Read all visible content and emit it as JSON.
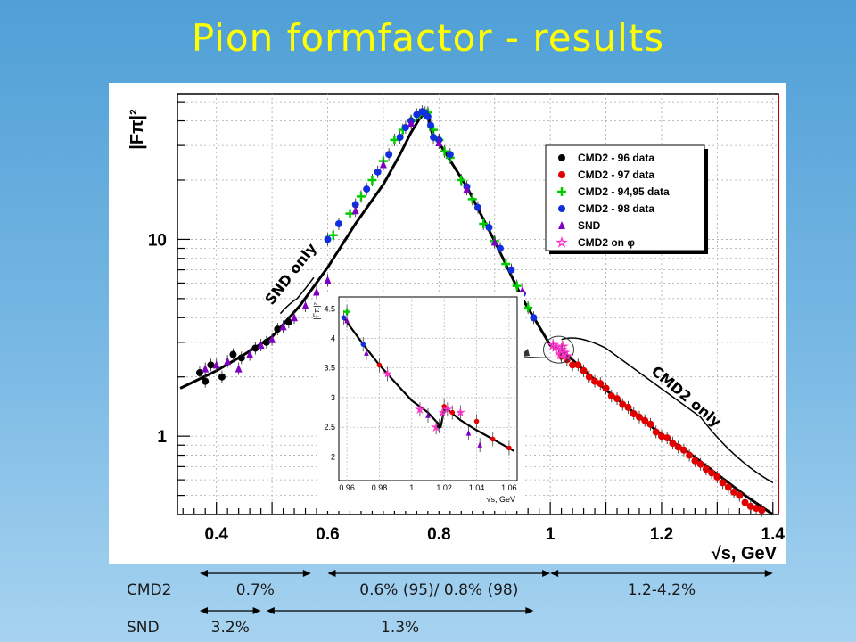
{
  "slide": {
    "title": "Pion formfactor - results"
  },
  "chart_data": {
    "type": "scatter",
    "y_scale": "log",
    "xlim": [
      0.33,
      1.41
    ],
    "ylim": [
      0.4,
      55
    ],
    "ylabel": "|Fπ|²",
    "xlabel": "√s, GeV",
    "x_ticks": [
      "0.4",
      "0.6",
      "0.8",
      "1",
      "1.2",
      "1.4"
    ],
    "x_tick_values": [
      0.4,
      0.6,
      0.8,
      1.0,
      1.2,
      1.4
    ],
    "y_ticks": [
      "1",
      "10"
    ],
    "y_tick_values": [
      1,
      10
    ],
    "grid": true,
    "legend_position": "top-right",
    "series": [
      {
        "name": "CMD2 - 96 data",
        "marker": "circle",
        "color": "#000000",
        "x": [
          0.37,
          0.38,
          0.39,
          0.41,
          0.43,
          0.445,
          0.47,
          0.49,
          0.51,
          0.53
        ],
        "y": [
          2.1,
          1.9,
          2.3,
          2.0,
          2.6,
          2.5,
          2.8,
          3.0,
          3.5,
          3.8
        ]
      },
      {
        "name": "CMD2 - 97 data",
        "marker": "circle",
        "color": "#e00000",
        "x": [
          1.02,
          1.03,
          1.04,
          1.05,
          1.06,
          1.07,
          1.08,
          1.09,
          1.1,
          1.11,
          1.12,
          1.13,
          1.14,
          1.15,
          1.16,
          1.17,
          1.18,
          1.19,
          1.2,
          1.21,
          1.22,
          1.23,
          1.24,
          1.25,
          1.26,
          1.27,
          1.28,
          1.29,
          1.3,
          1.31,
          1.32,
          1.33,
          1.34,
          1.35,
          1.36,
          1.37,
          1.38
        ],
        "y": [
          2.55,
          2.45,
          2.3,
          2.3,
          2.15,
          2.0,
          1.9,
          1.85,
          1.75,
          1.6,
          1.55,
          1.45,
          1.4,
          1.3,
          1.25,
          1.2,
          1.15,
          1.05,
          1.0,
          0.98,
          0.92,
          0.88,
          0.85,
          0.8,
          0.75,
          0.72,
          0.68,
          0.65,
          0.62,
          0.58,
          0.55,
          0.52,
          0.5,
          0.46,
          0.44,
          0.43,
          0.42
        ]
      },
      {
        "name": "CMD2 - 94,95 data",
        "marker": "cross",
        "color": "#00cc00",
        "x": [
          0.61,
          0.64,
          0.66,
          0.68,
          0.7,
          0.72,
          0.735,
          0.75,
          0.765,
          0.78,
          0.79,
          0.8,
          0.81,
          0.82,
          0.84,
          0.86,
          0.88,
          0.9,
          0.92,
          0.94,
          0.96
        ],
        "y": [
          10.5,
          13.5,
          16.5,
          20.0,
          25.0,
          32.0,
          36.0,
          40.0,
          43.0,
          44.0,
          36.0,
          32.0,
          28.0,
          26.0,
          20.0,
          16.0,
          12.0,
          9.8,
          7.5,
          5.8,
          4.5
        ]
      },
      {
        "name": "CMD2 - 98 data",
        "marker": "circle",
        "color": "#1030e0",
        "x": [
          0.6,
          0.62,
          0.65,
          0.67,
          0.69,
          0.71,
          0.73,
          0.74,
          0.75,
          0.76,
          0.77,
          0.775,
          0.78,
          0.785,
          0.79,
          0.8,
          0.82,
          0.85,
          0.87,
          0.89,
          0.91,
          0.93,
          0.95,
          0.97
        ],
        "y": [
          10.0,
          12.0,
          15.0,
          18.0,
          22.0,
          27.0,
          33.0,
          37.0,
          40.0,
          43.0,
          44.5,
          44.0,
          42.0,
          38.0,
          33.0,
          32.0,
          27.0,
          18.5,
          14.5,
          11.5,
          9.0,
          7.0,
          5.3,
          4.0
        ]
      },
      {
        "name": "SND",
        "marker": "triangle",
        "color": "#8000c0",
        "x": [
          0.38,
          0.4,
          0.42,
          0.44,
          0.46,
          0.48,
          0.5,
          0.52,
          0.54,
          0.56,
          0.58,
          0.6,
          0.65,
          0.7,
          0.75,
          0.8,
          0.85,
          0.9,
          0.95
        ],
        "y": [
          2.2,
          2.3,
          2.4,
          2.2,
          2.6,
          2.9,
          3.1,
          3.6,
          4.0,
          4.6,
          5.4,
          6.2,
          14.0,
          24.0,
          39.0,
          31.0,
          18.0,
          9.7,
          5.5
        ]
      },
      {
        "name": "CMD2 on φ",
        "marker": "star",
        "color": "#ff33cc",
        "x": [
          1.005,
          1.01,
          1.015,
          1.019,
          1.02,
          1.022,
          1.025,
          1.03
        ],
        "y": [
          2.9,
          2.85,
          2.7,
          2.6,
          2.75,
          2.85,
          2.65,
          2.55
        ]
      }
    ],
    "annotations": [
      {
        "text": "SND only",
        "x": 0.55,
        "y": 5.5
      },
      {
        "text": "CMD2 only",
        "x": 1.2,
        "y": 1.6
      }
    ],
    "inset": {
      "xlim": [
        0.955,
        1.065
      ],
      "ylim": [
        1.6,
        4.7
      ],
      "ylabel": "|Fπ|²",
      "xlabel": "√s, GeV",
      "x_ticks": [
        "0.96",
        "0.98",
        "1",
        "1.02",
        "1.04",
        "1.06"
      ],
      "x_tick_values": [
        0.96,
        0.98,
        1.0,
        1.02,
        1.04,
        1.06
      ],
      "y_ticks": [
        "2",
        "2.5",
        "3",
        "3.5",
        "4",
        "4.5"
      ],
      "y_tick_values": [
        2.0,
        2.5,
        3.0,
        3.5,
        4.0,
        4.5
      ],
      "points": [
        {
          "x": 0.958,
          "y": 4.35,
          "color": "#1030e0",
          "marker": "circle"
        },
        {
          "x": 0.96,
          "y": 4.45,
          "color": "#00cc00",
          "marker": "cross"
        },
        {
          "x": 0.96,
          "y": 4.3,
          "color": "#8000c0",
          "marker": "triangle"
        },
        {
          "x": 0.97,
          "y": 3.9,
          "color": "#1030e0",
          "marker": "circle"
        },
        {
          "x": 0.972,
          "y": 3.75,
          "color": "#8000c0",
          "marker": "triangle"
        },
        {
          "x": 0.98,
          "y": 3.55,
          "color": "#e00000",
          "marker": "circle"
        },
        {
          "x": 0.985,
          "y": 3.4,
          "color": "#ff33cc",
          "marker": "star"
        },
        {
          "x": 1.005,
          "y": 2.8,
          "color": "#ff33cc",
          "marker": "star"
        },
        {
          "x": 1.01,
          "y": 2.7,
          "color": "#8000c0",
          "marker": "triangle"
        },
        {
          "x": 1.015,
          "y": 2.5,
          "color": "#ff33cc",
          "marker": "star"
        },
        {
          "x": 1.017,
          "y": 2.52,
          "color": "#000000",
          "marker": "circle"
        },
        {
          "x": 1.019,
          "y": 2.75,
          "color": "#ff33cc",
          "marker": "star"
        },
        {
          "x": 1.02,
          "y": 2.85,
          "color": "#e00000",
          "marker": "circle"
        },
        {
          "x": 1.022,
          "y": 2.8,
          "color": "#ff33cc",
          "marker": "star"
        },
        {
          "x": 1.025,
          "y": 2.75,
          "color": "#e00000",
          "marker": "circle"
        },
        {
          "x": 1.03,
          "y": 2.75,
          "color": "#ff33cc",
          "marker": "star"
        },
        {
          "x": 1.035,
          "y": 2.4,
          "color": "#8000c0",
          "marker": "triangle"
        },
        {
          "x": 1.04,
          "y": 2.6,
          "color": "#e00000",
          "marker": "circle"
        },
        {
          "x": 1.042,
          "y": 2.2,
          "color": "#8000c0",
          "marker": "triangle"
        },
        {
          "x": 1.05,
          "y": 2.3,
          "color": "#e00000",
          "marker": "circle"
        },
        {
          "x": 1.06,
          "y": 2.15,
          "color": "#e00000",
          "marker": "circle"
        }
      ],
      "curve": [
        [
          0.958,
          4.35
        ],
        [
          0.97,
          3.9
        ],
        [
          0.98,
          3.55
        ],
        [
          0.99,
          3.25
        ],
        [
          1.0,
          2.95
        ],
        [
          1.01,
          2.75
        ],
        [
          1.015,
          2.6
        ],
        [
          1.018,
          2.52
        ],
        [
          1.02,
          2.8
        ],
        [
          1.023,
          2.78
        ],
        [
          1.03,
          2.62
        ],
        [
          1.04,
          2.45
        ],
        [
          1.05,
          2.3
        ],
        [
          1.063,
          2.1
        ]
      ]
    },
    "fit_curve": [
      [
        0.335,
        1.75
      ],
      [
        0.4,
        2.15
      ],
      [
        0.45,
        2.6
      ],
      [
        0.5,
        3.2
      ],
      [
        0.55,
        4.6
      ],
      [
        0.6,
        7.2
      ],
      [
        0.65,
        12.0
      ],
      [
        0.7,
        19.0
      ],
      [
        0.73,
        27.0
      ],
      [
        0.75,
        35.0
      ],
      [
        0.765,
        41.0
      ],
      [
        0.775,
        44.0
      ],
      [
        0.78,
        43.0
      ],
      [
        0.785,
        36.5
      ],
      [
        0.79,
        33.0
      ],
      [
        0.8,
        31.0
      ],
      [
        0.85,
        18.5
      ],
      [
        0.9,
        9.8
      ],
      [
        0.95,
        5.0
      ],
      [
        1.0,
        2.9
      ],
      [
        1.02,
        2.75
      ],
      [
        1.05,
        2.3
      ],
      [
        1.1,
        1.72
      ],
      [
        1.15,
        1.32
      ],
      [
        1.2,
        1.02
      ],
      [
        1.25,
        0.82
      ],
      [
        1.3,
        0.64
      ],
      [
        1.35,
        0.5
      ],
      [
        1.4,
        0.4
      ]
    ]
  },
  "uncertainties": {
    "row_cmd2_label": "CMD2",
    "row_snd_label": "SND",
    "cmd2": [
      {
        "label": "0.7%",
        "x_from": 0.37,
        "x_to": 0.57
      },
      {
        "label": "0.6% (95)/ 0.8% (98)",
        "x_from": 0.6,
        "x_to": 1.0
      },
      {
        "label": "1.2-4.2%",
        "x_from": 1.0,
        "x_to": 1.4
      }
    ],
    "snd": [
      {
        "label": "3.2%",
        "x_from": 0.37,
        "x_to": 0.48
      },
      {
        "label": "1.3%",
        "x_from": 0.49,
        "x_to": 0.97
      }
    ]
  }
}
